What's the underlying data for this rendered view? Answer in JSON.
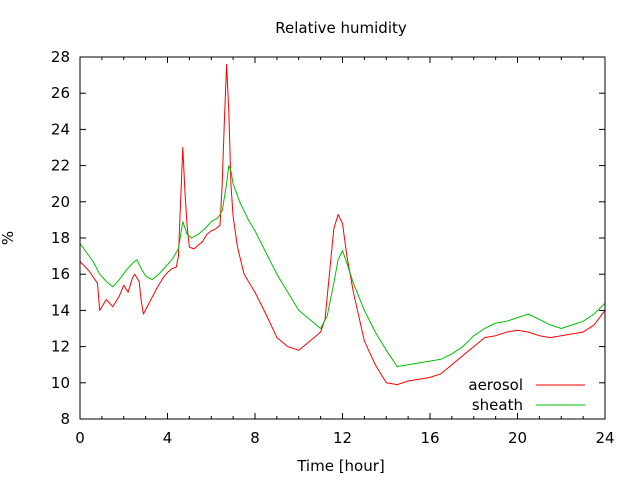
{
  "chart_data": {
    "type": "line",
    "title": "Relative humidity",
    "xlabel": "Time [hour]",
    "ylabel": "%",
    "xlim": [
      0,
      24
    ],
    "ylim": [
      8,
      28
    ],
    "xticks": [
      0,
      4,
      8,
      12,
      16,
      20,
      24
    ],
    "xtick_labels": [
      "0",
      "4",
      "8",
      "12",
      "16",
      "20",
      "24"
    ],
    "yticks": [
      8,
      10,
      12,
      14,
      16,
      18,
      20,
      22,
      24,
      26,
      28
    ],
    "ytick_labels": [
      "8",
      "10",
      "12",
      "14",
      "16",
      "18",
      "20",
      "22",
      "24",
      "26",
      "28"
    ],
    "grid": false,
    "legend_position": "bottom-right",
    "series": [
      {
        "name": "aerosol",
        "color": "#ff0000",
        "x": [
          0,
          0.4,
          0.8,
          0.9,
          1.2,
          1.5,
          1.8,
          2.0,
          2.2,
          2.4,
          2.5,
          2.7,
          2.8,
          2.9,
          3.2,
          3.5,
          3.8,
          4.0,
          4.2,
          4.4,
          4.5,
          4.6,
          4.7,
          4.8,
          4.9,
          5.0,
          5.2,
          5.4,
          5.6,
          5.8,
          6.0,
          6.2,
          6.4,
          6.5,
          6.6,
          6.7,
          6.8,
          6.9,
          7.0,
          7.2,
          7.5,
          8.0,
          8.5,
          9.0,
          9.5,
          10.0,
          10.5,
          11.0,
          11.2,
          11.4,
          11.6,
          11.8,
          12.0,
          12.2,
          12.5,
          13.0,
          13.5,
          14.0,
          14.5,
          15.0,
          15.5,
          16.0,
          16.5,
          17.0,
          17.5,
          18.0,
          18.5,
          19.0,
          19.5,
          20.0,
          20.5,
          21.0,
          21.5,
          22.0,
          22.5,
          23.0,
          23.5,
          24.0
        ],
        "y": [
          16.7,
          16.2,
          15.5,
          14.0,
          14.6,
          14.2,
          14.8,
          15.4,
          15.0,
          15.8,
          16.0,
          15.6,
          14.5,
          13.8,
          14.5,
          15.2,
          15.8,
          16.1,
          16.3,
          16.4,
          17.0,
          20.0,
          23.0,
          20.5,
          18.6,
          17.5,
          17.4,
          17.6,
          17.8,
          18.2,
          18.4,
          18.5,
          18.7,
          21.0,
          24.5,
          27.6,
          25.0,
          21.0,
          19.2,
          17.5,
          16.0,
          15.0,
          13.8,
          12.5,
          12.0,
          11.8,
          12.3,
          12.8,
          13.5,
          16.0,
          18.5,
          19.3,
          18.8,
          17.0,
          15.0,
          12.3,
          11.0,
          10.0,
          9.9,
          10.1,
          10.2,
          10.3,
          10.5,
          11.0,
          11.5,
          12.0,
          12.5,
          12.6,
          12.8,
          12.9,
          12.8,
          12.6,
          12.5,
          12.6,
          12.7,
          12.8,
          13.2,
          14.0
        ]
      },
      {
        "name": "sheath",
        "color": "#00c000",
        "x": [
          0,
          0.3,
          0.6,
          0.9,
          1.2,
          1.5,
          1.8,
          2.1,
          2.4,
          2.6,
          2.8,
          3.0,
          3.3,
          3.6,
          3.9,
          4.2,
          4.5,
          4.7,
          4.9,
          5.1,
          5.4,
          5.7,
          6.0,
          6.3,
          6.5,
          6.7,
          6.8,
          6.9,
          7.0,
          7.3,
          7.7,
          8.0,
          8.5,
          9.0,
          9.5,
          10.0,
          10.5,
          11.0,
          11.3,
          11.6,
          11.8,
          12.0,
          12.2,
          12.5,
          13.0,
          13.5,
          14.0,
          14.5,
          15.0,
          15.5,
          16.0,
          16.5,
          17.0,
          17.5,
          18.0,
          18.5,
          19.0,
          19.5,
          20.0,
          20.5,
          21.0,
          21.5,
          22.0,
          22.5,
          23.0,
          23.5,
          24.0
        ],
        "y": [
          17.7,
          17.2,
          16.7,
          16.0,
          15.6,
          15.3,
          15.7,
          16.2,
          16.6,
          16.8,
          16.3,
          15.9,
          15.7,
          16.0,
          16.4,
          16.8,
          17.4,
          18.9,
          18.2,
          18.0,
          18.2,
          18.5,
          18.9,
          19.1,
          19.5,
          21.0,
          22.0,
          21.7,
          21.0,
          20.0,
          19.0,
          18.4,
          17.2,
          16.0,
          15.0,
          14.0,
          13.5,
          13.0,
          13.7,
          15.5,
          16.8,
          17.3,
          16.6,
          15.5,
          14.0,
          12.8,
          11.8,
          10.9,
          11.0,
          11.1,
          11.2,
          11.3,
          11.6,
          12.0,
          12.6,
          13.0,
          13.3,
          13.4,
          13.6,
          13.8,
          13.5,
          13.2,
          13.0,
          13.2,
          13.4,
          13.8,
          14.4
        ]
      }
    ]
  }
}
